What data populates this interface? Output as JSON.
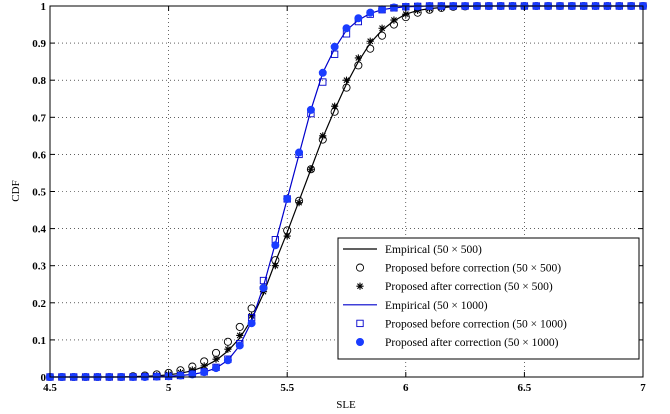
{
  "chart_data": {
    "type": "line",
    "title": "",
    "xlabel": "SLE",
    "ylabel": "CDF",
    "xlim": [
      4.5,
      7
    ],
    "ylim": [
      0,
      1
    ],
    "xticks": [
      "4.5",
      "5",
      "5.5",
      "6",
      "6.5",
      "7"
    ],
    "yticks": [
      "0",
      "0.1",
      "0.2",
      "0.3",
      "0.4",
      "0.5",
      "0.6",
      "0.7",
      "0.8",
      "0.9",
      "1"
    ],
    "grid": true,
    "legend_position": "lower-right",
    "x": [
      4.5,
      4.55,
      4.6,
      4.65,
      4.7,
      4.75,
      4.8,
      4.85,
      4.9,
      4.95,
      5.0,
      5.05,
      5.1,
      5.15,
      5.2,
      5.25,
      5.3,
      5.35,
      5.4,
      5.45,
      5.5,
      5.55,
      5.6,
      5.65,
      5.7,
      5.75,
      5.8,
      5.85,
      5.9,
      5.95,
      6.0,
      6.05,
      6.1,
      6.15,
      6.2,
      6.25,
      6.3,
      6.35,
      6.4,
      6.45,
      6.5,
      6.55,
      6.6,
      6.65,
      6.7,
      6.75,
      6.8,
      6.85,
      6.9,
      6.95,
      7.0
    ],
    "series": [
      {
        "name": "Empirical (50 × 500)",
        "style": "line",
        "color": "#000000",
        "values": [
          0.0,
          0.0,
          0.0,
          0.0,
          0.0,
          0.0,
          0.0,
          0.001,
          0.002,
          0.003,
          0.006,
          0.01,
          0.017,
          0.028,
          0.045,
          0.07,
          0.105,
          0.155,
          0.225,
          0.31,
          0.39,
          0.475,
          0.56,
          0.645,
          0.72,
          0.79,
          0.85,
          0.9,
          0.935,
          0.96,
          0.978,
          0.988,
          0.993,
          0.996,
          0.998,
          0.999,
          1.0,
          1.0,
          1.0,
          1.0,
          1.0,
          1.0,
          1.0,
          1.0,
          1.0,
          1.0,
          1.0,
          1.0,
          1.0,
          1.0,
          1.0
        ]
      },
      {
        "name": "Proposed before correction (50 × 500)",
        "style": "marker",
        "marker": "circle-open",
        "color": "#000000",
        "values": [
          0.0,
          0.0,
          0.0,
          0.0,
          0.0,
          0.0,
          0.0,
          0.002,
          0.004,
          0.007,
          0.011,
          0.018,
          0.028,
          0.042,
          0.065,
          0.095,
          0.135,
          0.185,
          0.24,
          0.315,
          0.395,
          0.475,
          0.56,
          0.64,
          0.715,
          0.78,
          0.84,
          0.885,
          0.92,
          0.95,
          0.97,
          0.982,
          0.99,
          0.995,
          0.998,
          0.999,
          1.0,
          1.0,
          1.0,
          1.0,
          1.0,
          1.0,
          1.0,
          1.0,
          1.0,
          1.0,
          1.0,
          1.0,
          1.0,
          1.0,
          1.0
        ]
      },
      {
        "name": "Proposed after correction  (50 × 500)",
        "style": "marker",
        "marker": "asterisk",
        "color": "#000000",
        "values": [
          0.0,
          0.0,
          0.0,
          0.0,
          0.0,
          0.0,
          0.0,
          0.001,
          0.002,
          0.004,
          0.007,
          0.012,
          0.019,
          0.03,
          0.048,
          0.075,
          0.112,
          0.165,
          0.23,
          0.3,
          0.38,
          0.47,
          0.56,
          0.65,
          0.73,
          0.8,
          0.86,
          0.905,
          0.94,
          0.962,
          0.978,
          0.988,
          0.993,
          0.996,
          0.998,
          0.999,
          1.0,
          1.0,
          1.0,
          1.0,
          1.0,
          1.0,
          1.0,
          1.0,
          1.0,
          1.0,
          1.0,
          1.0,
          1.0,
          1.0,
          1.0
        ]
      },
      {
        "name": "Empirical (50 × 1000)",
        "style": "line",
        "color": "#0000cc",
        "values": [
          0.0,
          0.0,
          0.0,
          0.0,
          0.0,
          0.0,
          0.0,
          0.0,
          0.0,
          0.001,
          0.002,
          0.004,
          0.007,
          0.013,
          0.024,
          0.045,
          0.085,
          0.15,
          0.245,
          0.36,
          0.48,
          0.6,
          0.72,
          0.82,
          0.885,
          0.935,
          0.962,
          0.98,
          0.99,
          0.995,
          0.998,
          0.999,
          1.0,
          1.0,
          1.0,
          1.0,
          1.0,
          1.0,
          1.0,
          1.0,
          1.0,
          1.0,
          1.0,
          1.0,
          1.0,
          1.0,
          1.0,
          1.0,
          1.0,
          1.0,
          1.0
        ]
      },
      {
        "name": "Proposed before correction (50 × 1000)",
        "style": "marker",
        "marker": "square-open",
        "color": "#0000cc",
        "values": [
          0.0,
          0.0,
          0.0,
          0.0,
          0.0,
          0.0,
          0.0,
          0.0,
          0.001,
          0.001,
          0.002,
          0.004,
          0.008,
          0.014,
          0.026,
          0.048,
          0.09,
          0.16,
          0.26,
          0.37,
          0.48,
          0.6,
          0.71,
          0.795,
          0.87,
          0.925,
          0.958,
          0.978,
          0.99,
          0.995,
          0.998,
          0.999,
          1.0,
          1.0,
          1.0,
          1.0,
          1.0,
          1.0,
          1.0,
          1.0,
          1.0,
          1.0,
          1.0,
          1.0,
          1.0,
          1.0,
          1.0,
          1.0,
          1.0,
          1.0,
          1.0
        ]
      },
      {
        "name": "Proposed after correction  (50 × 1000)",
        "style": "marker",
        "marker": "circle-filled",
        "color": "#1a3cff",
        "values": [
          0.0,
          0.0,
          0.0,
          0.0,
          0.0,
          0.0,
          0.0,
          0.0,
          0.0,
          0.001,
          0.002,
          0.004,
          0.007,
          0.013,
          0.024,
          0.045,
          0.085,
          0.145,
          0.24,
          0.355,
          0.48,
          0.605,
          0.72,
          0.82,
          0.89,
          0.94,
          0.967,
          0.982,
          0.991,
          0.996,
          0.998,
          0.999,
          1.0,
          1.0,
          1.0,
          1.0,
          1.0,
          1.0,
          1.0,
          1.0,
          1.0,
          1.0,
          1.0,
          1.0,
          1.0,
          1.0,
          1.0,
          1.0,
          1.0,
          1.0,
          1.0
        ]
      }
    ]
  }
}
